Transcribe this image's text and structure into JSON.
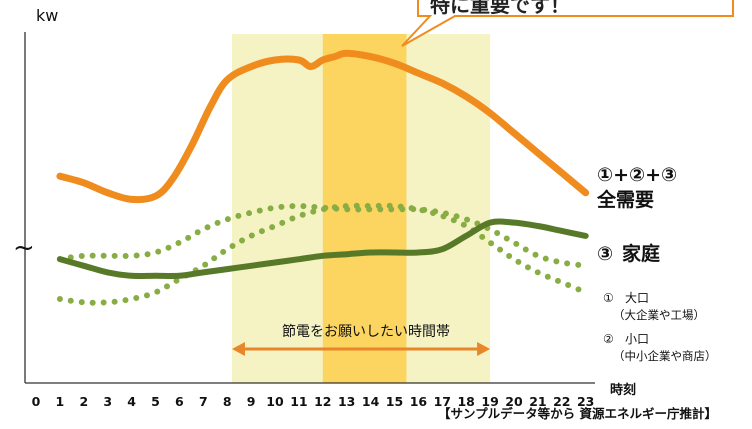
{
  "chart_data": {
    "type": "line",
    "ylabel": "kw",
    "xlabel": "時刻",
    "x": [
      0,
      1,
      2,
      3,
      4,
      5,
      6,
      7,
      8,
      9,
      10,
      11,
      12,
      13,
      14,
      15,
      16,
      17,
      18,
      19,
      20,
      21,
      22,
      23
    ],
    "xlim": [
      0,
      23
    ],
    "ylim": [
      0,
      100
    ],
    "y_axis_break": true,
    "grid": false,
    "callout_text": "特に重要です！",
    "arrow_label": "節電をお願いしたい時間帯",
    "arrow_range": [
      8.2,
      19
    ],
    "highlight_bands": [
      {
        "from": 8.2,
        "to": 19,
        "color": "#f5f2c4"
      },
      {
        "from": 12,
        "to": 15.5,
        "color": "#fbd560"
      }
    ],
    "series": [
      {
        "name": "全需要",
        "label_prefix": "①+②+③",
        "style": "solid",
        "color": "#f08c1e",
        "x": [
          1,
          2,
          3,
          4,
          5,
          5.7,
          6.5,
          7.3,
          8,
          9,
          10,
          11,
          11.5,
          12,
          12.5,
          13,
          14,
          15,
          16,
          17,
          18,
          19,
          20,
          21,
          22,
          23
        ],
        "values": [
          62,
          60,
          57,
          55,
          56,
          61,
          71,
          83,
          91,
          95,
          97,
          97,
          95,
          97,
          98,
          99,
          98,
          96,
          93,
          90,
          86,
          81,
          75,
          69,
          63,
          57
        ]
      },
      {
        "name": "家庭",
        "label_prefix": "③",
        "style": "solid",
        "color": "#587a28",
        "x": [
          1,
          2,
          3,
          4,
          5,
          6,
          7,
          8,
          9,
          10,
          11,
          12,
          13,
          14,
          15,
          16,
          17,
          18,
          19,
          20,
          21,
          22,
          23
        ],
        "values": [
          37,
          35,
          33,
          32,
          32,
          32,
          33,
          34,
          35,
          36,
          37,
          38,
          38.5,
          39,
          39,
          39,
          40,
          44,
          48,
          48,
          47,
          45.5,
          44
        ]
      },
      {
        "name": "大口",
        "label_prefix": "①",
        "note": "（大企業や工場）",
        "style": "dotted",
        "color": "#88ad44",
        "x": [
          1,
          2,
          3,
          4,
          5,
          6,
          7,
          8,
          9,
          10,
          11,
          12,
          13,
          14,
          15,
          16,
          17,
          18,
          19,
          20,
          21,
          22,
          23
        ],
        "values": [
          37,
          38,
          38,
          38,
          39,
          42,
          46,
          49,
          51,
          52.5,
          53,
          52.5,
          52,
          52,
          52,
          52,
          51,
          49,
          46,
          42,
          38,
          36,
          35
        ]
      },
      {
        "name": "小口",
        "label_prefix": "②",
        "note": "（中小企業や商店）",
        "style": "dotted",
        "color": "#88ad44",
        "x": [
          1,
          2,
          3,
          4,
          5,
          6,
          7,
          8,
          9,
          10,
          11,
          12,
          13,
          14,
          15,
          16,
          17,
          18,
          19,
          20,
          21,
          22,
          23
        ],
        "values": [
          25,
          24,
          24,
          25,
          27,
          31,
          35,
          40,
          44,
          47,
          50,
          52,
          53,
          53,
          53,
          52,
          50,
          47,
          42,
          37,
          33,
          30,
          27
        ]
      }
    ],
    "source_note": "【サンプルデータ等から 資源エネルギー庁推計】"
  }
}
